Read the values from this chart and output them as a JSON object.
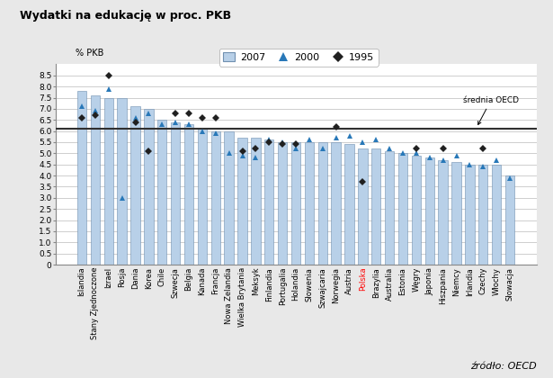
{
  "title": "Wydatki na edukację w proc. PKB",
  "ylabel": "% PKB",
  "source": "źródło: OECD",
  "oecd_line": 6.1,
  "oecd_label": "średnia OECD",
  "categories": [
    "Islandia",
    "Stany Zjednoczone",
    "Izrael",
    "Rosja",
    "Dania",
    "Korea",
    "Chile",
    "Szwecja",
    "Belgia",
    "Kanada",
    "Francja",
    "Nowa Zelandia",
    "Wielka Brytania",
    "Meksyk",
    "Finlandia",
    "Portugalia",
    "Holandia",
    "Słowenia",
    "Szwajcaria",
    "Norwegia",
    "Austria",
    "Polska",
    "Brazylia",
    "Australia",
    "Estonia",
    "Węgry",
    "Japonia",
    "Hiszpania",
    "Niemcy",
    "Irlandia",
    "Czechy",
    "Włochy",
    "Słowacja"
  ],
  "values_2007": [
    7.8,
    7.6,
    7.5,
    7.5,
    7.1,
    7.0,
    6.5,
    6.4,
    6.3,
    6.1,
    6.0,
    6.0,
    5.7,
    5.7,
    5.6,
    5.5,
    5.5,
    5.5,
    5.5,
    5.5,
    5.4,
    5.2,
    5.2,
    5.1,
    5.0,
    4.9,
    4.8,
    4.7,
    4.6,
    4.5,
    4.5,
    4.5,
    4.0
  ],
  "values_2000": [
    7.1,
    6.9,
    7.9,
    3.0,
    6.6,
    6.8,
    6.3,
    6.4,
    6.3,
    6.0,
    5.9,
    5.0,
    4.9,
    4.8,
    5.6,
    5.5,
    5.2,
    5.6,
    5.2,
    5.7,
    5.8,
    5.5,
    5.6,
    5.2,
    5.0,
    5.0,
    4.8,
    4.7,
    4.9,
    4.5,
    4.4,
    4.7,
    3.9
  ],
  "values_1995": [
    6.6,
    6.7,
    8.5,
    null,
    6.4,
    5.1,
    null,
    6.8,
    6.8,
    6.6,
    6.6,
    null,
    5.1,
    5.2,
    5.5,
    5.4,
    5.4,
    null,
    null,
    6.2,
    null,
    3.7,
    null,
    null,
    null,
    5.2,
    null,
    5.2,
    null,
    null,
    5.2,
    null,
    null
  ],
  "polska_index": 21,
  "bar_color": "#b8d0e8",
  "bar_edgecolor": "#7090b0",
  "triangle_color": "#2878b8",
  "diamond_color": "#202020",
  "oecd_line_color": "#303030",
  "background_color": "#e8e8e8",
  "plot_bg_color": "#ffffff",
  "ylim": [
    0,
    9.0
  ],
  "ytick_vals": [
    0,
    0.5,
    1.0,
    1.5,
    2.0,
    2.5,
    3.0,
    3.5,
    4.0,
    4.5,
    5.0,
    5.5,
    6.0,
    6.5,
    7.0,
    7.5,
    8.0,
    8.5
  ],
  "ytick_labels": [
    "0",
    "0.5",
    "1.0",
    "1.5",
    "2.0",
    "2.5",
    "3.0",
    "3.5",
    "4.0",
    "4.5",
    "5.0",
    "5.5",
    "6.0",
    "6.5",
    "7.0",
    "7.5",
    "8.0",
    "8.5"
  ],
  "figsize": [
    6.15,
    4.2
  ],
  "dpi": 100
}
